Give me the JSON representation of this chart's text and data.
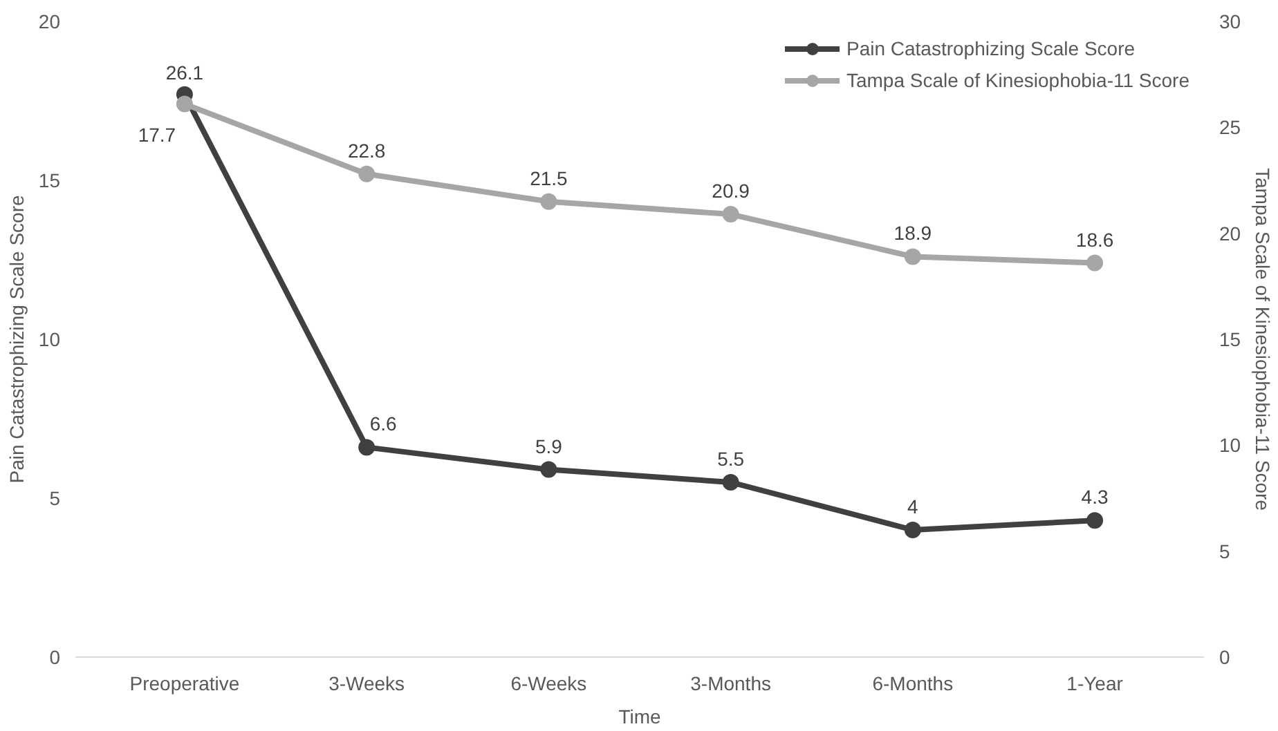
{
  "chart_data": {
    "type": "line",
    "xlabel": "Time",
    "ylabel": "Pain Catastrophizing Scale Score",
    "y2label": "Tampa Scale of Kinesiophobia-11 Score",
    "categories": [
      "Preoperative",
      "3-Weeks",
      "6-Weeks",
      "3-Months",
      "6-Months",
      "1-Year"
    ],
    "series": [
      {
        "name": "Pain Catastrophizing Scale Score",
        "color": "#404040",
        "values": [
          17.7,
          6.6,
          5.9,
          5.5,
          4,
          4.3
        ]
      },
      {
        "name": "Tampa Scale of Kinesiophobia-11 Score",
        "color": "#a6a6a6",
        "axis": "y2",
        "values": [
          26.1,
          22.8,
          21.5,
          20.9,
          18.9,
          18.6
        ]
      }
    ],
    "ylim": [
      0,
      20
    ],
    "yticks": [
      0,
      5,
      10,
      15,
      20
    ],
    "y2lim": [
      0,
      30
    ],
    "y2ticks": [
      0,
      5,
      10,
      15,
      20,
      25,
      30
    ],
    "marker": "circle",
    "line_style": "solid",
    "data_labels": true,
    "grid": false,
    "legend": "top right"
  }
}
